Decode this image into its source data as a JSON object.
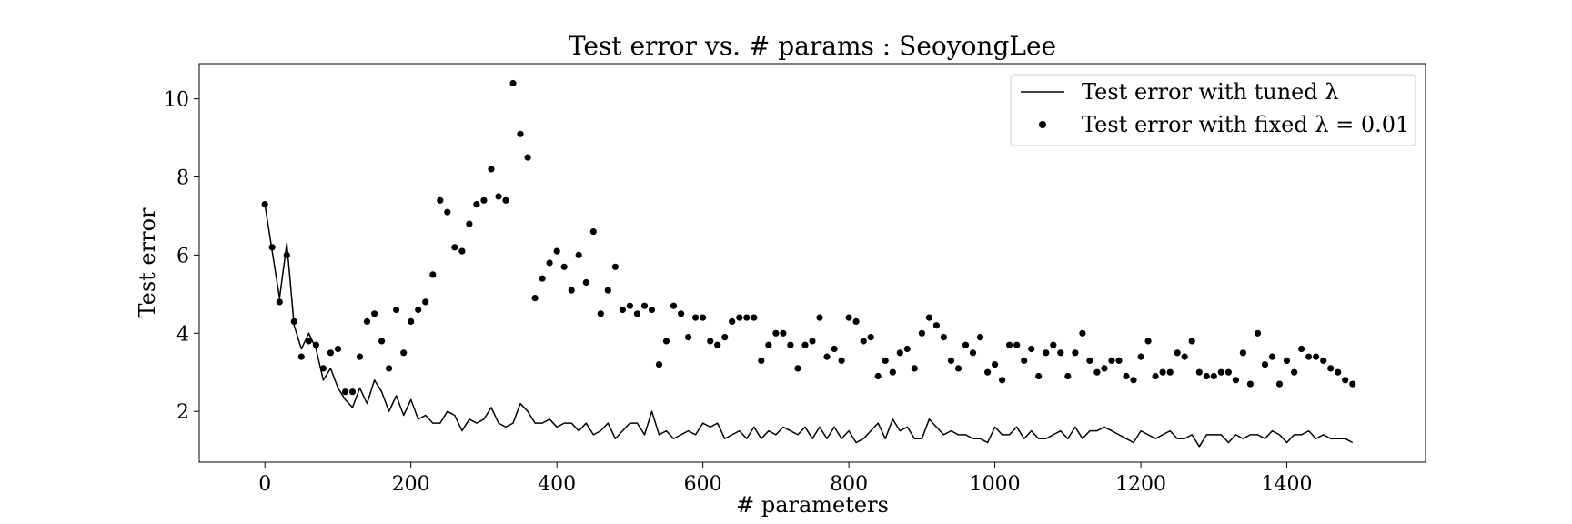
{
  "chart_data": {
    "type": "line",
    "title": "Test error vs. # params : SeoyongLee",
    "xlabel": "# parameters",
    "ylabel": "Test error",
    "xlim": [
      -90,
      1590
    ],
    "ylim": [
      0.7,
      10.9
    ],
    "xticks": [
      0,
      200,
      400,
      600,
      800,
      1000,
      1200,
      1400
    ],
    "yticks": [
      2,
      4,
      6,
      8,
      10
    ],
    "grid": false,
    "legend": "top-right",
    "series": [
      {
        "name": "Test error with tuned λ",
        "style": "line",
        "color": "#000000",
        "x": [
          0,
          10,
          20,
          30,
          40,
          50,
          60,
          70,
          80,
          90,
          100,
          110,
          120,
          130,
          140,
          150,
          160,
          170,
          180,
          190,
          200,
          210,
          220,
          230,
          240,
          250,
          260,
          270,
          280,
          290,
          300,
          310,
          320,
          330,
          340,
          350,
          360,
          370,
          380,
          390,
          400,
          410,
          420,
          430,
          440,
          450,
          460,
          470,
          480,
          490,
          500,
          510,
          520,
          530,
          540,
          550,
          560,
          570,
          580,
          590,
          600,
          610,
          620,
          630,
          640,
          650,
          660,
          670,
          680,
          690,
          700,
          710,
          720,
          730,
          740,
          750,
          760,
          770,
          780,
          790,
          800,
          810,
          820,
          830,
          840,
          850,
          860,
          870,
          880,
          890,
          900,
          910,
          920,
          930,
          940,
          950,
          960,
          970,
          980,
          990,
          1000,
          1010,
          1020,
          1030,
          1040,
          1050,
          1060,
          1070,
          1080,
          1090,
          1100,
          1110,
          1120,
          1130,
          1140,
          1150,
          1160,
          1170,
          1180,
          1190,
          1200,
          1210,
          1220,
          1230,
          1240,
          1250,
          1260,
          1270,
          1280,
          1290,
          1300,
          1310,
          1320,
          1330,
          1340,
          1350,
          1360,
          1370,
          1380,
          1390,
          1400,
          1410,
          1420,
          1430,
          1440,
          1450,
          1460,
          1470,
          1480,
          1490
        ],
        "y": [
          7.3,
          6.1,
          4.9,
          6.3,
          4.2,
          3.6,
          4.0,
          3.6,
          2.8,
          3.1,
          2.6,
          2.3,
          2.1,
          2.6,
          2.2,
          2.8,
          2.5,
          2.0,
          2.4,
          1.9,
          2.3,
          1.8,
          1.9,
          1.7,
          1.7,
          2.0,
          1.9,
          1.5,
          1.8,
          1.7,
          1.8,
          2.1,
          1.7,
          1.6,
          1.7,
          2.2,
          2.0,
          1.7,
          1.7,
          1.8,
          1.6,
          1.7,
          1.7,
          1.5,
          1.7,
          1.4,
          1.5,
          1.7,
          1.3,
          1.5,
          1.7,
          1.7,
          1.4,
          2.0,
          1.4,
          1.5,
          1.3,
          1.4,
          1.5,
          1.4,
          1.7,
          1.6,
          1.7,
          1.3,
          1.4,
          1.5,
          1.3,
          1.6,
          1.3,
          1.5,
          1.4,
          1.6,
          1.5,
          1.4,
          1.6,
          1.3,
          1.6,
          1.3,
          1.6,
          1.3,
          1.5,
          1.2,
          1.3,
          1.5,
          1.7,
          1.3,
          1.8,
          1.5,
          1.6,
          1.3,
          1.3,
          1.8,
          1.6,
          1.4,
          1.5,
          1.4,
          1.4,
          1.3,
          1.3,
          1.2,
          1.6,
          1.4,
          1.4,
          1.6,
          1.3,
          1.5,
          1.3,
          1.3,
          1.4,
          1.5,
          1.3,
          1.6,
          1.3,
          1.5,
          1.5,
          1.6,
          1.5,
          1.4,
          1.3,
          1.2,
          1.5,
          1.4,
          1.3,
          1.4,
          1.5,
          1.3,
          1.3,
          1.4,
          1.1,
          1.4,
          1.4,
          1.4,
          1.2,
          1.4,
          1.3,
          1.4,
          1.4,
          1.3,
          1.5,
          1.4,
          1.2,
          1.4,
          1.4,
          1.5,
          1.3,
          1.4,
          1.3,
          1.3,
          1.3,
          1.2
        ]
      },
      {
        "name": "Test error with fixed λ = 0.01",
        "style": "scatter",
        "color": "#000000",
        "x": [
          0,
          10,
          20,
          30,
          40,
          50,
          60,
          70,
          80,
          90,
          100,
          110,
          120,
          130,
          140,
          150,
          160,
          170,
          180,
          190,
          200,
          210,
          220,
          230,
          240,
          250,
          260,
          270,
          280,
          290,
          300,
          310,
          320,
          330,
          340,
          350,
          360,
          370,
          380,
          390,
          400,
          410,
          420,
          430,
          440,
          450,
          460,
          470,
          480,
          490,
          500,
          510,
          520,
          530,
          540,
          550,
          560,
          570,
          580,
          590,
          600,
          610,
          620,
          630,
          640,
          650,
          660,
          670,
          680,
          690,
          700,
          710,
          720,
          730,
          740,
          750,
          760,
          770,
          780,
          790,
          800,
          810,
          820,
          830,
          840,
          850,
          860,
          870,
          880,
          890,
          900,
          910,
          920,
          930,
          940,
          950,
          960,
          970,
          980,
          990,
          1000,
          1010,
          1020,
          1030,
          1040,
          1050,
          1060,
          1070,
          1080,
          1090,
          1100,
          1110,
          1120,
          1130,
          1140,
          1150,
          1160,
          1170,
          1180,
          1190,
          1200,
          1210,
          1220,
          1230,
          1240,
          1250,
          1260,
          1270,
          1280,
          1290,
          1300,
          1310,
          1320,
          1330,
          1340,
          1350,
          1360,
          1370,
          1380,
          1390,
          1400,
          1410,
          1420,
          1430,
          1440,
          1450,
          1460,
          1470,
          1480,
          1490
        ],
        "y": [
          7.3,
          6.2,
          4.8,
          6.0,
          4.3,
          3.4,
          3.8,
          3.7,
          3.1,
          3.5,
          3.6,
          2.5,
          2.5,
          3.4,
          4.3,
          4.5,
          3.8,
          3.1,
          4.6,
          3.5,
          4.3,
          4.6,
          4.8,
          5.5,
          7.4,
          7.1,
          6.2,
          6.1,
          6.8,
          7.3,
          7.4,
          8.2,
          7.5,
          7.4,
          10.4,
          9.1,
          8.5,
          4.9,
          5.4,
          5.8,
          6.1,
          5.7,
          5.1,
          6.0,
          5.3,
          6.6,
          4.5,
          5.1,
          5.7,
          4.6,
          4.7,
          4.5,
          4.7,
          4.6,
          3.2,
          3.8,
          4.7,
          4.5,
          3.9,
          4.4,
          4.4,
          3.8,
          3.7,
          3.9,
          4.3,
          4.4,
          4.4,
          4.4,
          3.3,
          3.7,
          4.0,
          4.0,
          3.7,
          3.1,
          3.7,
          3.8,
          4.4,
          3.4,
          3.6,
          3.3,
          4.4,
          4.3,
          3.8,
          3.9,
          2.9,
          3.3,
          3.0,
          3.5,
          3.6,
          3.1,
          4.0,
          4.4,
          4.2,
          3.9,
          3.3,
          3.1,
          3.7,
          3.5,
          3.9,
          3.0,
          3.2,
          2.8,
          3.7,
          3.7,
          3.3,
          3.6,
          2.9,
          3.5,
          3.7,
          3.5,
          2.9,
          3.5,
          4.0,
          3.3,
          3.0,
          3.1,
          3.3,
          3.3,
          2.9,
          2.8,
          3.4,
          3.8,
          2.9,
          3.0,
          3.0,
          3.5,
          3.4,
          3.8,
          3.0,
          2.9,
          2.9,
          3.0,
          3.0,
          2.8,
          3.5,
          2.7,
          4.0,
          3.2,
          3.4,
          2.7,
          3.3,
          3.0,
          3.6,
          3.4,
          3.4,
          3.3,
          3.1,
          3.0,
          2.8,
          2.7
        ]
      }
    ]
  }
}
